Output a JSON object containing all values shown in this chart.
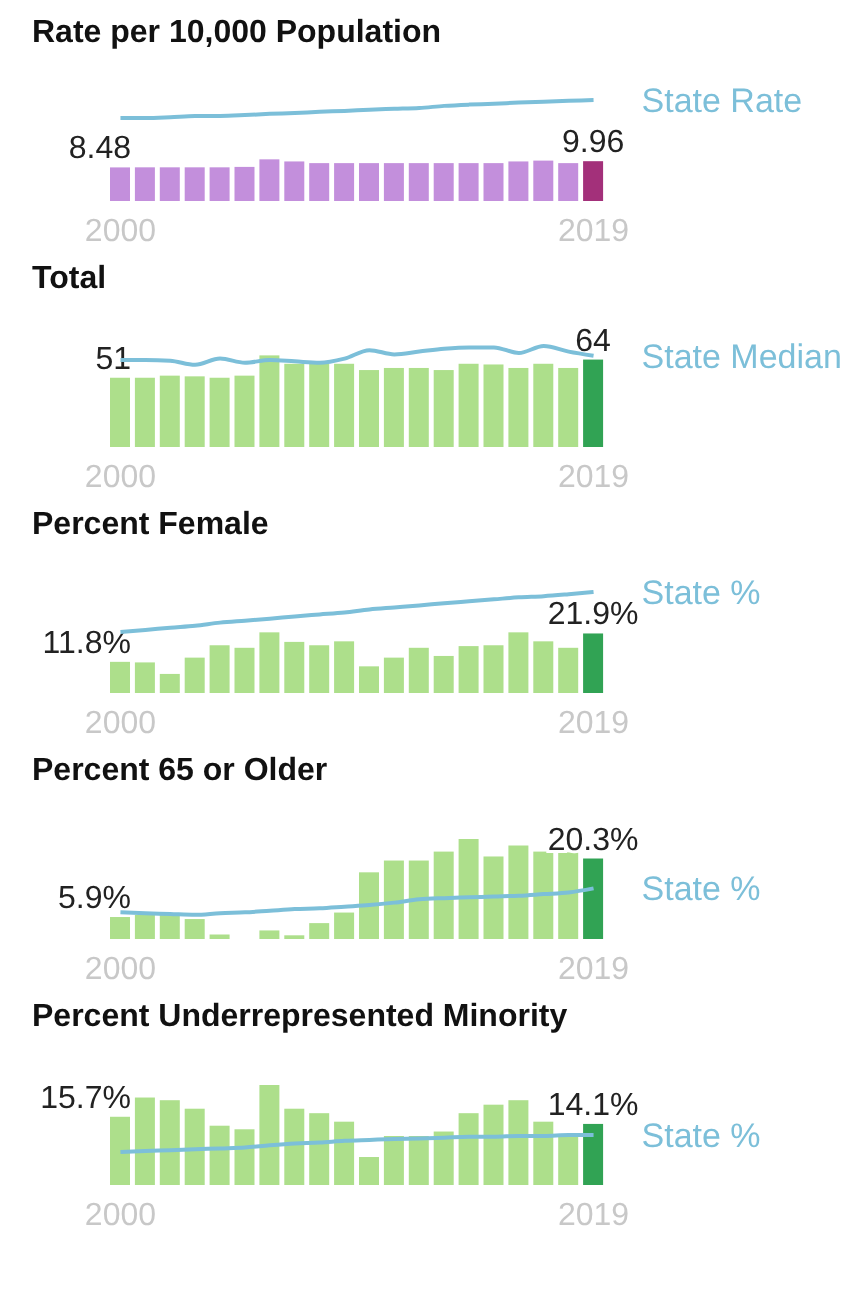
{
  "chart_data": [
    {
      "type": "bar",
      "title": "Rate per 10,000 Population",
      "categories": [
        "2000",
        null,
        null,
        null,
        null,
        null,
        null,
        null,
        null,
        null,
        null,
        null,
        null,
        null,
        null,
        null,
        null,
        null,
        null,
        "2019"
      ],
      "series": [
        {
          "colors": [
            "#c38fdc",
            "#c38fdc",
            "#c38fdc",
            "#c38fdc",
            "#c38fdc",
            "#c38fdc",
            "#c38fdc",
            "#c38fdc",
            "#c38fdc",
            "#c38fdc",
            "#c38fdc",
            "#c38fdc",
            "#c38fdc",
            "#c38fdc",
            "#c38fdc",
            "#c38fdc",
            "#c38fdc",
            "#c38fdc",
            "#c38fdc",
            "#a3307a"
          ],
          "values": [
            8.48,
            8.5,
            8.5,
            8.5,
            8.5,
            8.6,
            10.4,
            9.9,
            9.5,
            9.5,
            9.5,
            9.5,
            9.5,
            9.5,
            9.5,
            9.5,
            9.9,
            10.1,
            9.5,
            9.96
          ],
          "value_labels": [
            "8.48",
            null,
            null,
            null,
            null,
            null,
            null,
            null,
            null,
            null,
            null,
            null,
            null,
            null,
            null,
            null,
            null,
            null,
            null,
            "9.96"
          ]
        },
        {
          "type": "line",
          "name": "State Rate",
          "color": "#7cbfd9",
          "values": [
            20,
            20,
            20.2,
            20.5,
            20.5,
            20.7,
            21,
            21.2,
            21.5,
            21.7,
            22,
            22.2,
            22.4,
            22.9,
            23.2,
            23.4,
            23.7,
            23.9,
            24.1,
            24.3
          ]
        }
      ]
    },
    {
      "type": "bar",
      "title": "Total",
      "categories": [
        "2000",
        null,
        null,
        null,
        null,
        null,
        null,
        null,
        null,
        null,
        null,
        null,
        null,
        null,
        null,
        null,
        null,
        null,
        null,
        "2019"
      ],
      "series": [
        {
          "colors": [
            "#addf8b",
            "#addf8b",
            "#addf8b",
            "#addf8b",
            "#addf8b",
            "#addf8b",
            "#addf8b",
            "#addf8b",
            "#addf8b",
            "#addf8b",
            "#addf8b",
            "#addf8b",
            "#addf8b",
            "#addf8b",
            "#addf8b",
            "#addf8b",
            "#addf8b",
            "#addf8b",
            "#addf8b",
            "#31a354"
          ],
          "values": [
            51,
            51,
            52.5,
            52,
            51,
            52.5,
            67,
            61,
            61,
            61,
            56.5,
            58,
            58,
            56.5,
            61,
            60.5,
            58,
            61,
            58,
            64
          ],
          "value_labels": [
            "51",
            null,
            null,
            null,
            null,
            null,
            null,
            null,
            null,
            null,
            null,
            null,
            null,
            null,
            null,
            null,
            null,
            null,
            null,
            "64"
          ]
        },
        {
          "type": "line",
          "name": "State Median",
          "color": "#7cbfd9",
          "values": [
            63,
            63,
            62.4,
            59.5,
            64,
            61,
            63,
            62,
            61,
            64,
            70,
            67,
            69,
            71,
            72,
            72,
            68,
            73,
            69,
            66
          ]
        }
      ]
    },
    {
      "type": "bar",
      "title": "Percent Female",
      "categories": [
        "2000",
        null,
        null,
        null,
        null,
        null,
        null,
        null,
        null,
        null,
        null,
        null,
        null,
        null,
        null,
        null,
        null,
        null,
        null,
        "2019"
      ],
      "series": [
        {
          "colors": [
            "#addf8b",
            "#addf8b",
            "#addf8b",
            "#addf8b",
            "#addf8b",
            "#addf8b",
            "#addf8b",
            "#addf8b",
            "#addf8b",
            "#addf8b",
            "#addf8b",
            "#addf8b",
            "#addf8b",
            "#addf8b",
            "#addf8b",
            "#addf8b",
            "#addf8b",
            "#addf8b",
            "#addf8b",
            "#31a354"
          ],
          "values": [
            11.8,
            11.6,
            7.5,
            13.3,
            17.7,
            16.8,
            22.3,
            18.9,
            17.7,
            19.1,
            10.2,
            13.3,
            16.8,
            13.9,
            17.4,
            17.7,
            22.3,
            19.1,
            16.8,
            21.9
          ],
          "value_labels": [
            "11.8%",
            null,
            null,
            null,
            null,
            null,
            null,
            null,
            null,
            null,
            null,
            null,
            null,
            null,
            null,
            null,
            null,
            null,
            null,
            "21.9%"
          ]
        },
        {
          "type": "line",
          "name": "State %",
          "color": "#7cbfd9",
          "values": [
            22.1,
            22.8,
            23.6,
            24.3,
            25.4,
            26.1,
            26.8,
            27.6,
            28.3,
            29,
            30.1,
            30.8,
            31.5,
            32.3,
            33,
            33.7,
            34.4,
            34.8,
            35.5,
            36.3
          ]
        }
      ]
    },
    {
      "type": "bar",
      "title": "Percent 65 or Older",
      "categories": [
        "2000",
        null,
        null,
        null,
        null,
        null,
        null,
        null,
        null,
        null,
        null,
        null,
        null,
        null,
        null,
        null,
        null,
        null,
        null,
        "2019"
      ],
      "series": [
        {
          "colors": [
            "#addf8b",
            "#addf8b",
            "#addf8b",
            "#addf8b",
            "#addf8b",
            null,
            "#addf8b",
            "#addf8b",
            "#addf8b",
            "#addf8b",
            "#addf8b",
            "#addf8b",
            "#addf8b",
            "#addf8b",
            "#addf8b",
            "#addf8b",
            "#addf8b",
            "#addf8b",
            "#addf8b",
            "#31a354"
          ],
          "values": [
            5.9,
            6.4,
            6.4,
            5.4,
            1.6,
            null,
            2.6,
            1.4,
            4.4,
            7,
            16.9,
            19.8,
            19.8,
            22,
            25.1,
            20.8,
            23.5,
            22,
            21.8,
            20.3
          ],
          "value_labels": [
            "5.9%",
            null,
            null,
            null,
            null,
            null,
            null,
            null,
            null,
            null,
            null,
            null,
            null,
            null,
            null,
            null,
            null,
            null,
            null,
            "20.3%"
          ]
        },
        {
          "type": "line",
          "name": "State %",
          "color": "#7cbfd9",
          "values": [
            6.8,
            6.6,
            6.4,
            6.2,
            6.6,
            6.8,
            7.2,
            7.6,
            7.8,
            8.2,
            8.6,
            9.2,
            10,
            10.3,
            10.5,
            10.7,
            10.9,
            11.3,
            11.7,
            12.7
          ]
        }
      ]
    },
    {
      "type": "bar",
      "title": "Percent Underrepresented Minority",
      "categories": [
        "2000",
        null,
        null,
        null,
        null,
        null,
        null,
        null,
        null,
        null,
        null,
        null,
        null,
        null,
        null,
        null,
        null,
        null,
        null,
        "2019"
      ],
      "series": [
        {
          "colors": [
            "#addf8b",
            "#addf8b",
            "#addf8b",
            "#addf8b",
            "#addf8b",
            "#addf8b",
            "#addf8b",
            "#addf8b",
            "#addf8b",
            "#addf8b",
            "#addf8b",
            "#addf8b",
            "#addf8b",
            "#addf8b",
            "#addf8b",
            "#addf8b",
            "#addf8b",
            "#addf8b",
            "#addf8b",
            "#31a354"
          ],
          "values": [
            15.7,
            20,
            19.4,
            17.5,
            13.7,
            12.9,
            22.8,
            17.5,
            16.5,
            14.6,
            6.7,
            11.4,
            11.4,
            12.4,
            16.5,
            18.4,
            19.4,
            14.6,
            11.4,
            14.1
          ],
          "value_labels": [
            "15.7%",
            null,
            null,
            null,
            null,
            null,
            null,
            null,
            null,
            null,
            null,
            null,
            null,
            null,
            null,
            null,
            null,
            null,
            null,
            "14.1%"
          ]
        },
        {
          "type": "line",
          "name": "State %",
          "color": "#7cbfd9",
          "values": [
            7.6,
            7.8,
            8,
            8.2,
            8.4,
            8.6,
            9.1,
            9.5,
            9.7,
            10.1,
            10.3,
            10.5,
            10.6,
            10.8,
            11,
            11,
            11.2,
            11.2,
            11.4,
            11.4
          ]
        }
      ]
    }
  ]
}
